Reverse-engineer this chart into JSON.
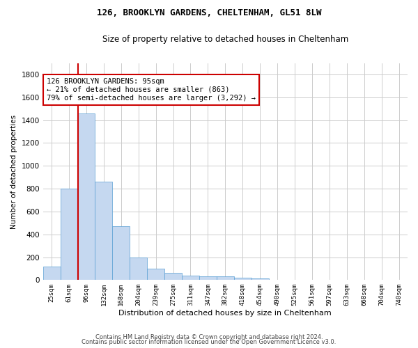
{
  "title": "126, BROOKLYN GARDENS, CHELTENHAM, GL51 8LW",
  "subtitle": "Size of property relative to detached houses in Cheltenham",
  "xlabel": "Distribution of detached houses by size in Cheltenham",
  "ylabel": "Number of detached properties",
  "bar_color": "#c5d8f0",
  "bar_edge_color": "#5a9fd4",
  "categories": [
    "25sqm",
    "61sqm",
    "96sqm",
    "132sqm",
    "168sqm",
    "204sqm",
    "239sqm",
    "275sqm",
    "311sqm",
    "347sqm",
    "382sqm",
    "418sqm",
    "454sqm",
    "490sqm",
    "525sqm",
    "561sqm",
    "597sqm",
    "633sqm",
    "668sqm",
    "704sqm",
    "740sqm"
  ],
  "values": [
    120,
    800,
    1460,
    860,
    470,
    200,
    100,
    65,
    40,
    35,
    30,
    20,
    15,
    5,
    3,
    2,
    2,
    1,
    1,
    1,
    0
  ],
  "ylim": [
    0,
    1900
  ],
  "yticks": [
    0,
    200,
    400,
    600,
    800,
    1000,
    1200,
    1400,
    1600,
    1800
  ],
  "annotation_text": "126 BROOKLYN GARDENS: 95sqm\n← 21% of detached houses are smaller (863)\n79% of semi-detached houses are larger (3,292) →",
  "annotation_box_color": "#ffffff",
  "annotation_box_edge": "#cc0000",
  "line_color": "#cc0000",
  "footer_line1": "Contains HM Land Registry data © Crown copyright and database right 2024.",
  "footer_line2": "Contains public sector information licensed under the Open Government Licence v3.0.",
  "background_color": "#ffffff",
  "grid_color": "#cccccc"
}
